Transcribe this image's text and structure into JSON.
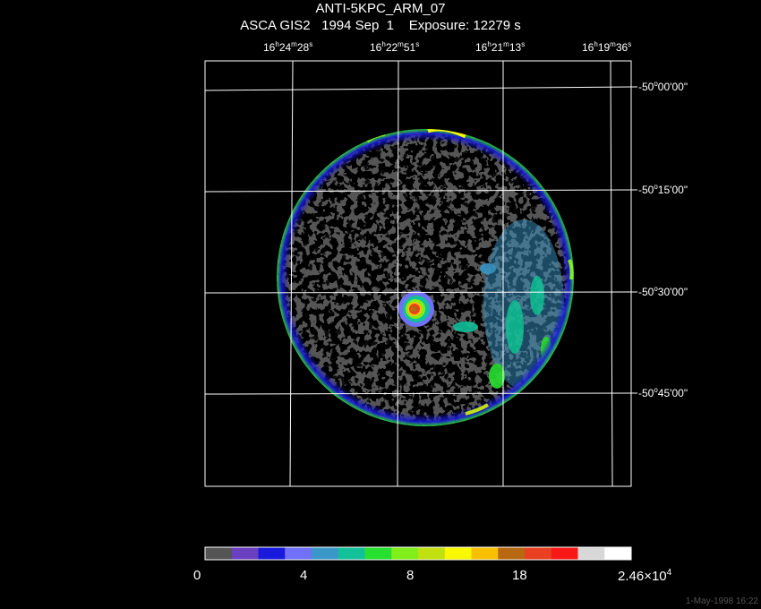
{
  "header": {
    "title": "ANTI-5KPC_ARM_07",
    "instrument": "ASCA GIS2",
    "date": "1994 Sep  1",
    "exposure": "Exposure: 12279 s"
  },
  "ra_axis": [
    {
      "h": "16",
      "m": "24",
      "s": "28"
    },
    {
      "h": "16",
      "m": "22",
      "s": "51"
    },
    {
      "h": "16",
      "m": "21",
      "s": "13"
    },
    {
      "h": "16",
      "m": "19",
      "s": "36"
    }
  ],
  "dec_axis": [
    {
      "deg": "-50",
      "min": "00",
      "sec": "00"
    },
    {
      "deg": "-50",
      "min": "15",
      "sec": "00"
    },
    {
      "deg": "-50",
      "min": "30",
      "sec": "00"
    },
    {
      "deg": "-50",
      "min": "45",
      "sec": "00"
    }
  ],
  "colorbar": {
    "colors": [
      "#555555",
      "#6a3fc0",
      "#1a1adc",
      "#7070f8",
      "#3a98c8",
      "#12c09a",
      "#28e030",
      "#80ee18",
      "#c0e010",
      "#f8f800",
      "#f8c000",
      "#b86810",
      "#e84020",
      "#f81818",
      "#d8d8d8",
      "#ffffff"
    ],
    "labels": [
      "0",
      "4",
      "8",
      "18"
    ],
    "max_mantissa": "2.46×10",
    "max_exp": "4"
  },
  "timestamp": "1-May-1998 16:22"
}
